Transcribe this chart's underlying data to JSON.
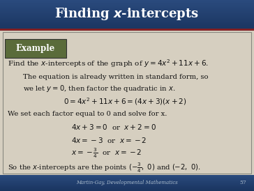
{
  "title": "Finding x-intercepts",
  "title_italic_part": "x",
  "title_color": "#FFFFFF",
  "header_bg_top": "#2B4B7E",
  "header_bg_bottom": "#1A3560",
  "header_red_line": "#8B1A1A",
  "body_bg": "#D6CFC0",
  "example_box_bg": "#5A6B3A",
  "example_box_text": "Example",
  "example_box_text_color": "#FFFFFF",
  "footer_text": "Martin-Gay, Developmental Mathematics",
  "footer_number": "57",
  "footer_bg": "#2B4B7E",
  "footer_text_color": "#CCCCCC",
  "lines": [
    {
      "text": "Find the x-intercepts of the graph of y = 4x² + 11x + 6.",
      "indent": 0.02,
      "style": "normal",
      "size": 9
    },
    {
      "text": "The equation is already written in standard form, so",
      "indent": 0.08,
      "style": "normal",
      "size": 8.5
    },
    {
      "text": "we let y = 0, then factor the quadratic in x.",
      "indent": 0.08,
      "style": "normal",
      "size": 8.5
    },
    {
      "text": "0 = 4x² + 11x + 6 = (4x + 3)(x + 2)",
      "indent": 0.28,
      "style": "normal",
      "size": 9
    },
    {
      "text": "We set each factor equal to 0 and solve for x.",
      "indent": 0.05,
      "style": "normal",
      "size": 8.5
    },
    {
      "text": "4x + 3 = 0  or  x + 2 = 0",
      "indent": 0.28,
      "style": "normal",
      "size": 9
    },
    {
      "text": "4x = −3  or  x = −2",
      "indent": 0.28,
      "style": "normal",
      "size": 9
    },
    {
      "text": "x = −3⁄4  or  x = −2",
      "indent": 0.28,
      "style": "normal",
      "size": 9
    },
    {
      "text": "So the x-intercepts are the points (−3⁄4, 0) and (−2, 0).",
      "indent": 0.02,
      "style": "normal",
      "size": 8.5
    }
  ]
}
